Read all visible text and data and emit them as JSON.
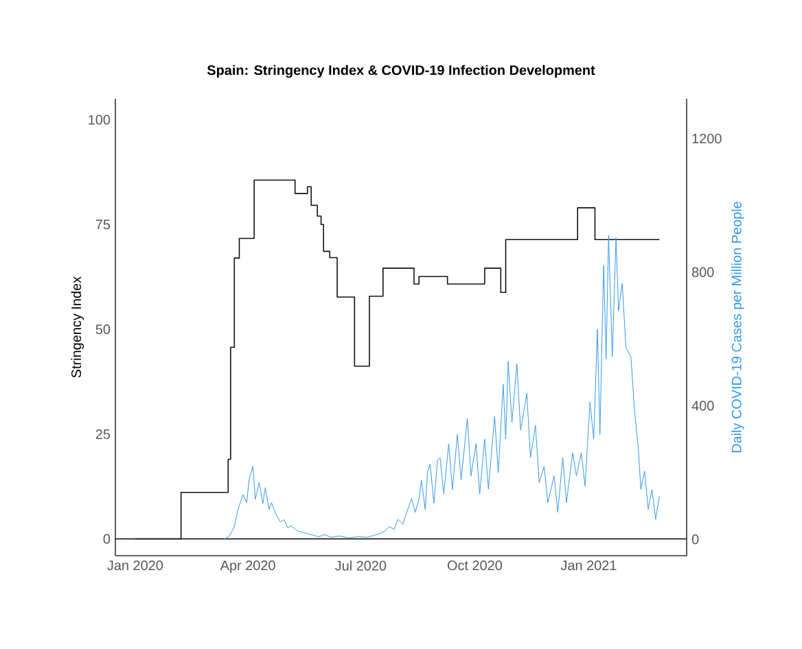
{
  "chart_data": {
    "type": "line",
    "title": "Spain: Stringency Index & COVID-19 Infection Development",
    "ylabel": "Stringency Index",
    "y2label": "Daily COVID-19 Cases per Million People",
    "xlim": [
      "2019-12-16",
      "2021-03-21"
    ],
    "xticks": [
      {
        "value": "2020-01-01",
        "label": "Jan 2020"
      },
      {
        "value": "2020-04-01",
        "label": "Apr 2020"
      },
      {
        "value": "2020-07-01",
        "label": "Jul 2020"
      },
      {
        "value": "2020-10-01",
        "label": "Oct 2020"
      },
      {
        "value": "2021-01-01",
        "label": "Jan 2021"
      }
    ],
    "ylim": [
      -4,
      105
    ],
    "yticks": [
      0,
      25,
      50,
      75,
      100
    ],
    "y2lim": [
      -49,
      1319
    ],
    "y2ticks": [
      0,
      400,
      800,
      1200
    ],
    "ref_lines": [
      {
        "axis": "y",
        "value": 0,
        "color": "#000000"
      }
    ],
    "series": [
      {
        "type": "step",
        "color": "#111111",
        "x": [
          "2020-01-01",
          "2020-02-07",
          "2020-03-16",
          "2020-03-18",
          "2020-03-21",
          "2020-03-25",
          "2020-04-06",
          "2020-05-09",
          "2020-05-19",
          "2020-05-22",
          "2020-05-27",
          "2020-05-30",
          "2020-06-01",
          "2020-06-06",
          "2020-06-12",
          "2020-06-26",
          "2020-07-08",
          "2020-07-19",
          "2020-08-13",
          "2020-08-17",
          "2020-09-09",
          "2020-10-09",
          "2020-10-22",
          "2020-10-26",
          "2020-12-23",
          "2021-01-06",
          "2021-02-27"
        ],
        "values": [
          0,
          11.1,
          19,
          45.7,
          67,
          71.7,
          85.6,
          82.4,
          84,
          79.6,
          77,
          75,
          68.6,
          67.1,
          57.7,
          41.2,
          57.9,
          64.6,
          60.8,
          62.6,
          60.8,
          64.6,
          58.8,
          71.4,
          79,
          71.4,
          71.4
        ]
      },
      {
        "axis": "y2",
        "color": "#3399ee",
        "x": [
          "2020-03-13",
          "2020-03-17",
          "2020-03-21",
          "2020-03-24",
          "2020-03-28",
          "2020-03-31",
          "2020-04-02",
          "2020-04-05",
          "2020-04-07",
          "2020-04-10",
          "2020-04-13",
          "2020-04-15",
          "2020-04-18",
          "2020-04-20",
          "2020-04-23",
          "2020-04-27",
          "2020-04-30",
          "2020-05-03",
          "2020-05-06",
          "2020-05-11",
          "2020-05-16",
          "2020-05-22",
          "2020-05-28",
          "2020-06-02",
          "2020-06-07",
          "2020-06-14",
          "2020-06-21",
          "2020-06-29",
          "2020-07-06",
          "2020-07-12",
          "2020-07-17",
          "2020-07-21",
          "2020-07-24",
          "2020-07-28",
          "2020-07-31",
          "2020-08-04",
          "2020-08-07",
          "2020-08-11",
          "2020-08-14",
          "2020-08-17",
          "2020-08-19",
          "2020-08-22",
          "2020-08-24",
          "2020-08-26",
          "2020-08-29",
          "2020-09-01",
          "2020-09-03",
          "2020-09-06",
          "2020-09-10",
          "2020-09-13",
          "2020-09-17",
          "2020-09-20",
          "2020-09-25",
          "2020-09-28",
          "2020-10-02",
          "2020-10-05",
          "2020-10-09",
          "2020-10-12",
          "2020-10-17",
          "2020-10-20",
          "2020-10-24",
          "2020-10-26",
          "2020-10-28",
          "2020-10-31",
          "2020-11-04",
          "2020-11-07",
          "2020-11-12",
          "2020-11-15",
          "2020-11-19",
          "2020-11-22",
          "2020-11-26",
          "2020-11-29",
          "2020-12-04",
          "2020-12-07",
          "2020-12-11",
          "2020-12-14",
          "2020-12-19",
          "2020-12-22",
          "2020-12-26",
          "2020-12-29",
          "2021-01-02",
          "2021-01-05",
          "2021-01-08",
          "2021-01-10",
          "2021-01-13",
          "2021-01-15",
          "2021-01-17",
          "2021-01-20",
          "2021-01-23",
          "2021-01-25",
          "2021-01-28",
          "2021-01-31",
          "2021-02-04",
          "2021-02-07",
          "2021-02-10",
          "2021-02-12",
          "2021-02-15",
          "2021-02-18",
          "2021-02-21",
          "2021-02-24",
          "2021-02-27"
        ],
        "values": [
          0,
          10,
          38,
          90,
          134,
          110,
          180,
          219,
          120,
          170,
          107,
          155,
          90,
          110,
          80,
          52,
          59,
          35,
          40,
          25,
          20,
          14,
          8,
          14,
          6,
          10,
          4,
          8,
          6,
          12,
          18,
          26,
          38,
          30,
          60,
          45,
          80,
          122,
          81,
          120,
          177,
          90,
          203,
          225,
          108,
          237,
          245,
          136,
          286,
          149,
          314,
          177,
          362,
          190,
          286,
          136,
          300,
          150,
          368,
          200,
          464,
          300,
          533,
          350,
          526,
          327,
          437,
          245,
          341,
          170,
          218,
          110,
          190,
          81,
          245,
          110,
          259,
          190,
          259,
          160,
          410,
          300,
          629,
          314,
          820,
          540,
          910,
          547,
          903,
          684,
          766,
          574,
          547,
          382,
          273,
          150,
          204,
          90,
          149,
          60,
          129
        ]
      }
    ]
  }
}
